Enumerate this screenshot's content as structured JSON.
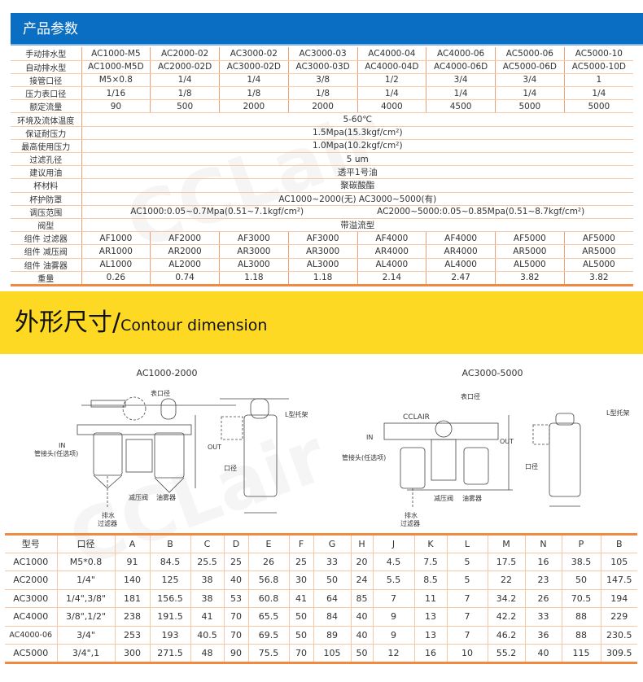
{
  "header": {
    "title": "产品参数",
    "color": "#0a6fc2"
  },
  "spec": {
    "model_rows": [
      {
        "label": "手动排水型",
        "values": [
          "AC1000-M5",
          "AC2000-02",
          "AC3000-02",
          "AC3000-03",
          "AC4000-04",
          "AC4000-06",
          "AC5000-06",
          "AC5000-10"
        ]
      },
      {
        "label": "自动排水型",
        "values": [
          "AC1000-M5D",
          "AC2000-02D",
          "AC3000-02D",
          "AC3000-03D",
          "AC4000-04D",
          "AC4000-06D",
          "AC5000-06D",
          "AC5000-10D"
        ]
      },
      {
        "label": "接管口径",
        "values": [
          "M5×0.8",
          "1/4",
          "1/4",
          "3/8",
          "1/2",
          "3/4",
          "3/4",
          "1"
        ]
      },
      {
        "label": "压力表口径",
        "values": [
          "1/16",
          "1/8",
          "1/8",
          "1/8",
          "1/4",
          "1/4",
          "1/4",
          "1/4"
        ]
      },
      {
        "label": "额定流量",
        "values": [
          "90",
          "500",
          "2000",
          "2000",
          "4000",
          "4500",
          "5000",
          "5000"
        ]
      }
    ],
    "merged_rows": [
      {
        "label": "环境及流体温度",
        "parts": [
          "5-60℃"
        ]
      },
      {
        "label": "保证耐压力",
        "parts": [
          "1.5Mpa(15.3kgf/cm²)"
        ]
      },
      {
        "label": "最高使用压力",
        "parts": [
          "1.0Mpa(10.2kgf/cm²)"
        ]
      },
      {
        "label": "过滤孔径",
        "parts": [
          "5 um"
        ]
      },
      {
        "label": "建议用油",
        "parts": [
          "透平1号油"
        ]
      },
      {
        "label": "杯材料",
        "parts": [
          "聚碳酸酯"
        ]
      },
      {
        "label": "杯护防罩",
        "parts": [
          "AC1000~2000(无)  AC3000~5000(有)"
        ]
      },
      {
        "label": "调压范围",
        "parts": [
          "AC1000:0.05~0.7Mpa(0.51~7.1kgf/cm²)",
          "AC2000~5000:0.05~0.85Mpa(0.51~8.7kgf/cm²)"
        ]
      },
      {
        "label": "阀型",
        "parts": [
          "带溢流型"
        ]
      }
    ],
    "component_rows": [
      {
        "label": "组件 过滤器",
        "values": [
          "AF1000",
          "AF2000",
          "AF3000",
          "AF3000",
          "AF4000",
          "AF4000",
          "AF5000",
          "AF5000"
        ]
      },
      {
        "label": "组件 减压阀",
        "values": [
          "AR1000",
          "AR2000",
          "AR3000",
          "AR3000",
          "AR4000",
          "AR4000",
          "AR5000",
          "AR5000"
        ]
      },
      {
        "label": "组件 油雾器",
        "values": [
          "AL1000",
          "AL2000",
          "AL3000",
          "AL3000",
          "AL4000",
          "AL4000",
          "AL5000",
          "AL5000"
        ]
      },
      {
        "label": "重量",
        "values": [
          "0.26",
          "0.74",
          "1.18",
          "1.18",
          "2.14",
          "2.47",
          "3.82",
          "3.82"
        ]
      }
    ]
  },
  "section": {
    "title_zh": "外形尺寸/",
    "title_en": "Contour dimension",
    "color": "#fdd923"
  },
  "diagrams": [
    {
      "title": "AC1000-2000",
      "labels": {
        "gauge": "表口径",
        "fitting": "管接头(任选项)",
        "drain1": "排水",
        "drain2": "过滤器",
        "regulator": "减压阀",
        "lubricator": "油雾器",
        "port": "口径",
        "bracket": "L型托架",
        "in": "IN",
        "out": "OUT"
      }
    },
    {
      "title": "AC3000-5000",
      "labels": {
        "brand": "CCLAIR",
        "gauge": "表口径",
        "fitting": "管接头(任选项)",
        "drain1": "排水",
        "drain2": "过滤器",
        "regulator": "减压阀",
        "lubricator": "油雾器",
        "port": "口径",
        "bracket": "L型托架",
        "in": "IN",
        "out": "OUT"
      }
    }
  ],
  "dims": {
    "headers": [
      "型号",
      "口径",
      "A",
      "B",
      "C",
      "D",
      "E",
      "F",
      "G",
      "H",
      "J",
      "K",
      "L",
      "M",
      "N",
      "P",
      "B"
    ],
    "rows": [
      [
        "AC1000",
        "M5*0.8",
        "91",
        "84.5",
        "25.5",
        "25",
        "26",
        "25",
        "33",
        "20",
        "4.5",
        "7.5",
        "5",
        "17.5",
        "16",
        "38.5",
        "105"
      ],
      [
        "AC2000",
        "1/4\"",
        "140",
        "125",
        "38",
        "40",
        "56.8",
        "30",
        "50",
        "24",
        "5.5",
        "8.5",
        "5",
        "22",
        "23",
        "50",
        "147.5"
      ],
      [
        "AC3000",
        "1/4\",3/8\"",
        "181",
        "156.5",
        "38",
        "53",
        "60.8",
        "41",
        "64",
        "85",
        "7",
        "11",
        "7",
        "34.2",
        "26",
        "70.5",
        "194"
      ],
      [
        "AC4000",
        "3/8\",1/2\"",
        "238",
        "191.5",
        "41",
        "70",
        "65.5",
        "50",
        "84",
        "40",
        "9",
        "13",
        "7",
        "42.2",
        "33",
        "88",
        "229"
      ],
      [
        "AC4000-06",
        "3/4\"",
        "253",
        "193",
        "40.5",
        "70",
        "69.5",
        "50",
        "89",
        "40",
        "9",
        "13",
        "7",
        "46.2",
        "36",
        "88",
        "230.5"
      ],
      [
        "AC5000",
        "3/4\",1",
        "300",
        "271.5",
        "48",
        "90",
        "75.5",
        "70",
        "105",
        "50",
        "12",
        "16",
        "10",
        "55.2",
        "40",
        "115",
        "309.5"
      ]
    ]
  }
}
